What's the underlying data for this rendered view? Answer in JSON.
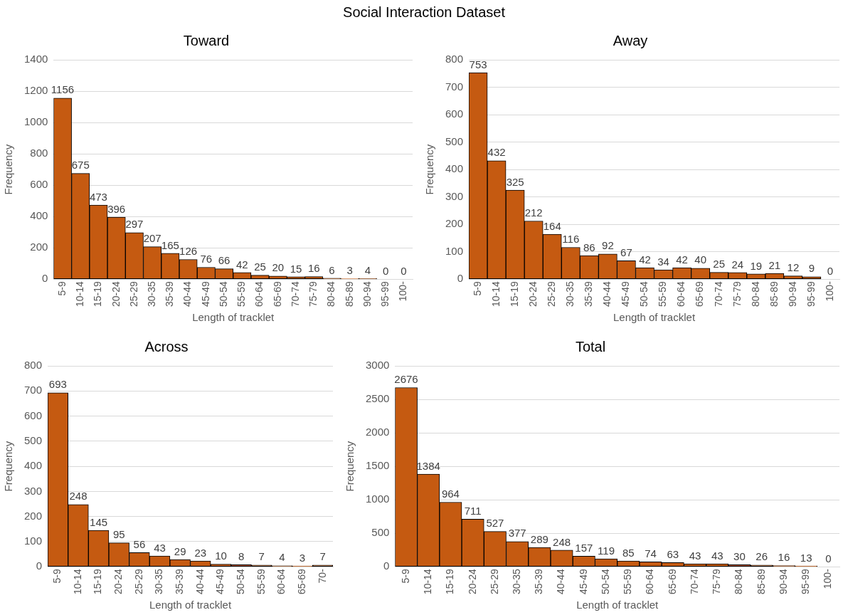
{
  "chart_data": [
    {
      "type": "bar",
      "annotations": [
        "Social Interaction Dataset"
      ],
      "title": "Toward",
      "xlabel": "Length of tracklet",
      "ylabel": "Frequency",
      "categories": [
        "5-9",
        "10-14",
        "15-19",
        "20-24",
        "25-29",
        "30-35",
        "35-39",
        "40-44",
        "45-49",
        "50-54",
        "55-59",
        "60-64",
        "65-69",
        "70-74",
        "75-79",
        "80-84",
        "85-89",
        "90-94",
        "95-99",
        "100-"
      ],
      "values": [
        1156,
        675,
        473,
        396,
        297,
        207,
        165,
        126,
        76,
        66,
        42,
        25,
        20,
        15,
        16,
        6,
        3,
        4,
        0,
        0
      ],
      "color": "#c55a11",
      "ylim": [
        0,
        1400
      ],
      "yticks": [
        0,
        200,
        400,
        600,
        800,
        1000,
        1200,
        1400
      ],
      "grid": "y",
      "data_labels": true
    },
    {
      "type": "bar",
      "title": "Away",
      "xlabel": "Length of tracklet",
      "ylabel": "Frequency",
      "categories": [
        "5-9",
        "10-14",
        "15-19",
        "20-24",
        "25-29",
        "30-35",
        "35-39",
        "40-44",
        "45-49",
        "50-54",
        "55-59",
        "60-64",
        "65-69",
        "70-74",
        "75-79",
        "80-84",
        "85-89",
        "90-94",
        "95-99",
        "100-"
      ],
      "values": [
        753,
        432,
        325,
        212,
        164,
        116,
        86,
        92,
        67,
        42,
        34,
        42,
        40,
        25,
        24,
        19,
        21,
        12,
        9,
        0
      ],
      "color": "#c55a11",
      "ylim": [
        0,
        800
      ],
      "yticks": [
        0,
        100,
        200,
        300,
        400,
        500,
        600,
        700,
        800
      ],
      "grid": "y",
      "data_labels": true
    },
    {
      "type": "bar",
      "title": "Across",
      "xlabel": "Length of tracklet",
      "ylabel": "Frequency",
      "categories": [
        "5-9",
        "10-14",
        "15-19",
        "20-24",
        "25-29",
        "30-35",
        "35-39",
        "40-44",
        "45-49",
        "50-54",
        "55-59",
        "60-64",
        "65-69",
        "70-"
      ],
      "values": [
        693,
        248,
        145,
        95,
        56,
        43,
        29,
        23,
        10,
        8,
        7,
        4,
        3,
        7
      ],
      "color": "#c55a11",
      "ylim": [
        0,
        800
      ],
      "yticks": [
        0,
        100,
        200,
        300,
        400,
        500,
        600,
        700,
        800
      ],
      "grid": "y",
      "data_labels": true
    },
    {
      "type": "bar",
      "title": "Total",
      "xlabel": "Length of tracklet",
      "ylabel": "Frequency",
      "categories": [
        "5-9",
        "10-14",
        "15-19",
        "20-24",
        "25-29",
        "30-35",
        "35-39",
        "40-44",
        "45-49",
        "50-54",
        "55-59",
        "60-64",
        "65-69",
        "70-74",
        "75-79",
        "80-84",
        "85-89",
        "90-94",
        "95-99",
        "100-"
      ],
      "values": [
        2676,
        1384,
        964,
        711,
        527,
        377,
        289,
        248,
        157,
        119,
        85,
        74,
        63,
        43,
        43,
        30,
        26,
        16,
        13,
        0
      ],
      "color": "#c55a11",
      "ylim": [
        0,
        3000
      ],
      "yticks": [
        0,
        500,
        1000,
        1500,
        2000,
        2500,
        3000
      ],
      "grid": "y",
      "data_labels": true
    }
  ]
}
